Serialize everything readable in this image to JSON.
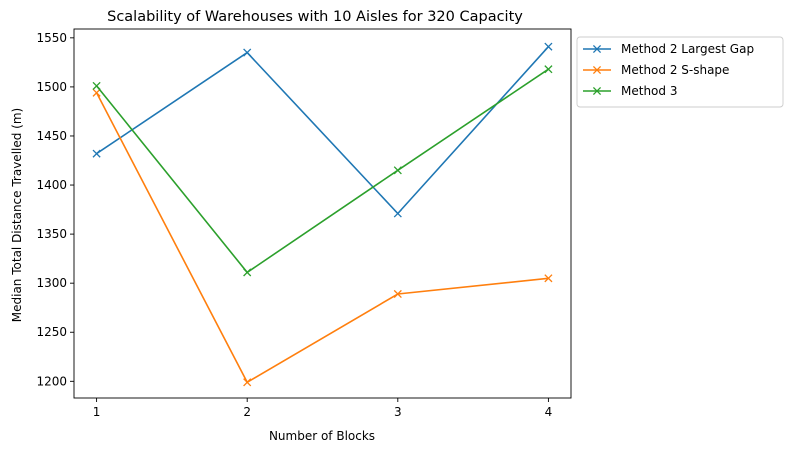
{
  "chart_data": {
    "type": "line",
    "title": "Scalability of Warehouses with 10 Aisles for 320 Capacity",
    "xlabel": "Number of Blocks",
    "ylabel": "Median Total Distance Travelled (m)",
    "x": [
      1,
      2,
      3,
      4
    ],
    "xticks": [
      "1",
      "2",
      "3",
      "4"
    ],
    "yticks": [
      1200,
      1250,
      1300,
      1350,
      1400,
      1450,
      1500,
      1550
    ],
    "xlim": [
      0.85,
      4.15
    ],
    "ylim": [
      1183,
      1559
    ],
    "grid": false,
    "legend_position": "outside-top-right",
    "marker": "x",
    "series": [
      {
        "name": "Method 2 Largest Gap",
        "color": "#1f77b4",
        "values": [
          1432,
          1535,
          1371,
          1541
        ]
      },
      {
        "name": "Method 2 S-shape",
        "color": "#ff7f0e",
        "values": [
          1494,
          1199,
          1289,
          1305
        ]
      },
      {
        "name": "Method 3",
        "color": "#2ca02c",
        "values": [
          1501,
          1311,
          1415,
          1518
        ]
      }
    ]
  }
}
